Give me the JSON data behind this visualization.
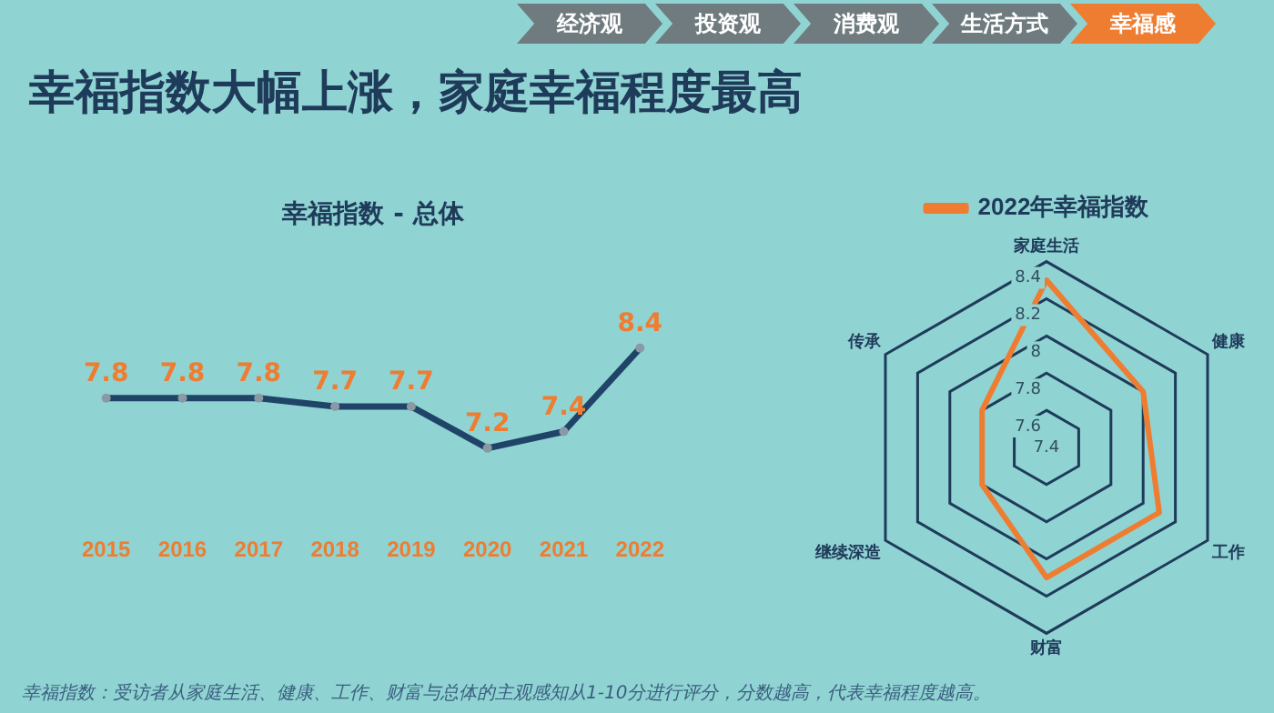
{
  "chart_data": [
    {
      "type": "other",
      "title": "幸福指数大幅上涨，家庭幸福程度最高",
      "annotations": [
        "经济观",
        "投资观",
        "消费观",
        "生活方式",
        "幸福感"
      ]
    },
    {
      "type": "line",
      "title": "幸福指数 - 总体",
      "categories": [
        "2015",
        "2016",
        "2017",
        "2018",
        "2019",
        "2020",
        "2021",
        "2022"
      ],
      "series": [
        {
          "color": "#1f4468",
          "values": [
            7.8,
            7.8,
            7.8,
            7.7,
            7.7,
            7.2,
            7.4,
            8.4
          ]
        }
      ],
      "data_labels": true,
      "marker": "circle",
      "grid": false,
      "legend": false,
      "annotations": [
        "幸福指数：受访者从家庭生活、健康、工作、财富与总体的主观感知从1-10分进行评分，分数越高，代表幸福程度越高。"
      ]
    },
    {
      "type": "radar",
      "categories": [
        "家庭生活",
        "健康",
        "工作",
        "财富",
        "继续深造",
        "传承"
      ],
      "series": [
        {
          "name": "2022年幸福指数",
          "color": "#ee7d31",
          "values": [
            8.3,
            8.0,
            8.1,
            8.1,
            7.8,
            7.8
          ]
        }
      ],
      "ylim": [
        7.4,
        8.4
      ],
      "yticks": [
        7.4,
        7.6,
        7.8,
        8,
        8.2,
        8.4
      ],
      "grid": true,
      "legend": "top",
      "marker": "none"
    }
  ]
}
